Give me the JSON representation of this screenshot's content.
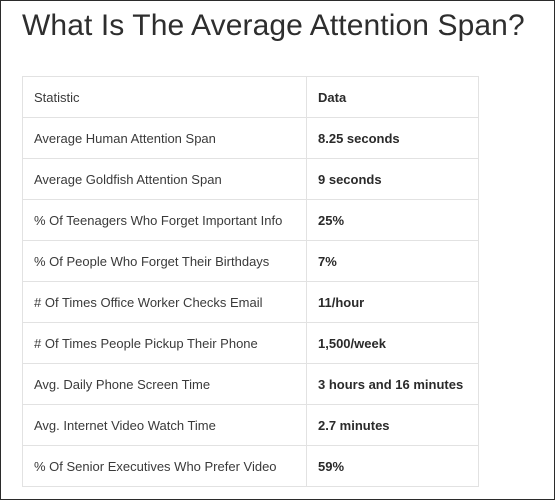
{
  "page": {
    "title": "What Is The Average Attention Span?"
  },
  "table": {
    "headers": [
      "Statistic",
      "Data"
    ],
    "rows": [
      [
        "Average Human Attention Span",
        "8.25 seconds"
      ],
      [
        "Average Goldfish Attention Span",
        "9 seconds"
      ],
      [
        "% Of Teenagers Who Forget Important Info",
        "25%"
      ],
      [
        "% Of People Who Forget Their Birthdays",
        "7%"
      ],
      [
        "# Of Times Office Worker Checks Email",
        "11/hour"
      ],
      [
        "# Of Times People Pickup Their Phone",
        "1,500/week"
      ],
      [
        "Avg. Daily Phone Screen Time",
        "3 hours and 16 minutes"
      ],
      [
        "Avg. Internet Video Watch Time",
        "2.7 minutes"
      ],
      [
        "% Of Senior Executives Who Prefer Video",
        "59%"
      ]
    ]
  }
}
